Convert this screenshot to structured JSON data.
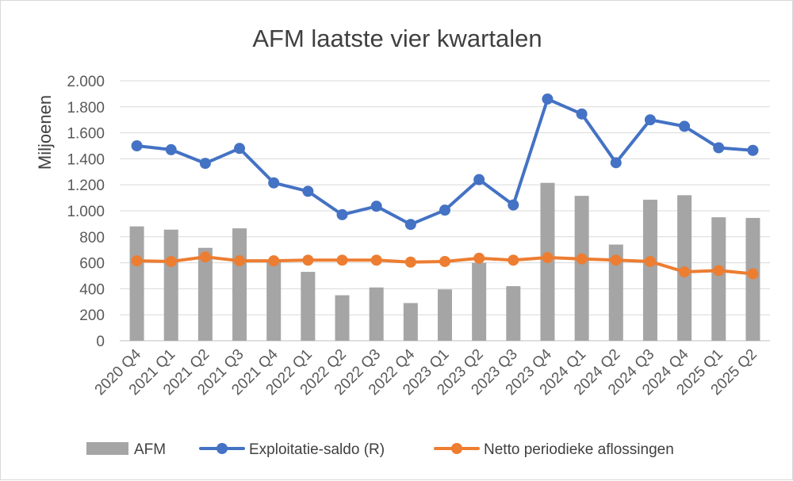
{
  "chart_data": {
    "type": "bar+line",
    "title": "AFM laatste vier kwartalen",
    "ylabel": "Miljoenen",
    "xlabel": "",
    "ylim": [
      0,
      2000
    ],
    "yticks": [
      0,
      200,
      400,
      600,
      800,
      1000,
      1200,
      1400,
      1600,
      1800,
      2000
    ],
    "ytick_labels": [
      "0",
      "200",
      "400",
      "600",
      "800",
      "1.000",
      "1.200",
      "1.400",
      "1.600",
      "1.800",
      "2.000"
    ],
    "grid": true,
    "legend_position": "bottom",
    "categories": [
      "2020 Q4",
      "2021 Q1",
      "2021 Q2",
      "2021 Q3",
      "2021 Q4",
      "2022 Q1",
      "2022 Q2",
      "2022 Q3",
      "2022 Q4",
      "2023 Q1",
      "2023 Q2",
      "2023 Q3",
      "2023 Q4",
      "2024 Q1",
      "2024 Q2",
      "2024 Q3",
      "2024 Q4",
      "2025 Q1",
      "2025 Q2"
    ],
    "series": [
      {
        "name": "AFM",
        "type": "bar",
        "color": "#a5a5a5",
        "values": [
          880,
          855,
          715,
          865,
          610,
          530,
          350,
          410,
          290,
          395,
          600,
          420,
          1215,
          1115,
          740,
          1085,
          1120,
          950,
          945
        ]
      },
      {
        "name": "Exploitatie-saldo (R)",
        "type": "line",
        "color": "#4472c4",
        "values": [
          1500,
          1470,
          1365,
          1480,
          1215,
          1150,
          970,
          1035,
          895,
          1005,
          1240,
          1045,
          1860,
          1745,
          1370,
          1700,
          1650,
          1485,
          1465
        ]
      },
      {
        "name": "Netto periodieke aflossingen",
        "type": "line",
        "color": "#ed7d31",
        "values": [
          615,
          610,
          645,
          615,
          615,
          620,
          620,
          620,
          605,
          610,
          635,
          620,
          640,
          630,
          620,
          610,
          530,
          540,
          515
        ]
      }
    ]
  }
}
